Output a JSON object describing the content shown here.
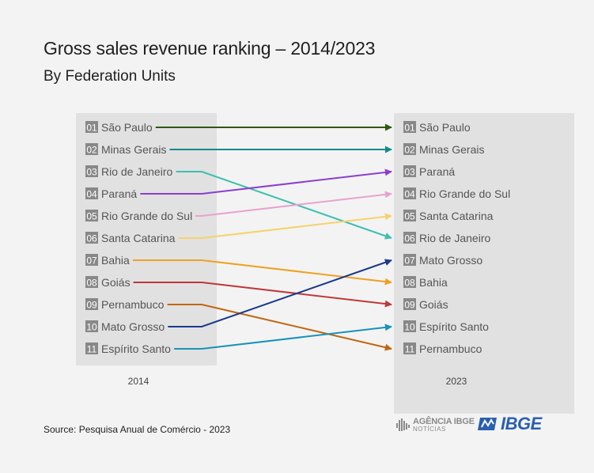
{
  "title": "Gross sales revenue ranking – 2014/2023",
  "subtitle": "By Federation Units",
  "source": "Source: Pesquisa Anual de Comércio - 2023",
  "logos": {
    "agencia_line1": "AGÊNCIA IBGE",
    "agencia_line2": "NOTÍCIAS",
    "ibge": "IBGE"
  },
  "chart_data": {
    "type": "slope-ranking",
    "left_label": "2014",
    "right_label": "2023",
    "left_ranking": [
      {
        "rank": "01",
        "name": "São Paulo"
      },
      {
        "rank": "02",
        "name": "Minas Gerais"
      },
      {
        "rank": "03",
        "name": "Rio de Janeiro"
      },
      {
        "rank": "04",
        "name": "Paraná"
      },
      {
        "rank": "05",
        "name": "Rio Grande do Sul"
      },
      {
        "rank": "06",
        "name": "Santa Catarina"
      },
      {
        "rank": "07",
        "name": "Bahia"
      },
      {
        "rank": "08",
        "name": "Goiás"
      },
      {
        "rank": "09",
        "name": "Pernambuco"
      },
      {
        "rank": "10",
        "name": "Mato Grosso"
      },
      {
        "rank": "11",
        "name": "Espírito Santo"
      }
    ],
    "right_ranking": [
      {
        "rank": "01",
        "name": "São Paulo"
      },
      {
        "rank": "02",
        "name": "Minas Gerais"
      },
      {
        "rank": "03",
        "name": "Paraná"
      },
      {
        "rank": "04",
        "name": "Rio Grande do Sul"
      },
      {
        "rank": "05",
        "name": "Santa Catarina"
      },
      {
        "rank": "06",
        "name": "Rio de Janeiro"
      },
      {
        "rank": "07",
        "name": "Mato Grosso"
      },
      {
        "rank": "08",
        "name": "Bahia"
      },
      {
        "rank": "09",
        "name": "Goiás"
      },
      {
        "rank": "10",
        "name": "Espírito Santo"
      },
      {
        "rank": "11",
        "name": "Pernambuco"
      }
    ],
    "colors": {
      "São Paulo": "#2d5a0f",
      "Minas Gerais": "#128a8a",
      "Rio de Janeiro": "#3cbfb0",
      "Paraná": "#8b3fd0",
      "Rio Grande do Sul": "#e8a2cf",
      "Santa Catarina": "#f5d36a",
      "Bahia": "#f0a020",
      "Goiás": "#c0383a",
      "Pernambuco": "#c0650f",
      "Mato Grosso": "#1a3a8c",
      "Espírito Santo": "#1892b8"
    },
    "panel_color": "#e1e1e1",
    "badge_color": "#888888"
  }
}
